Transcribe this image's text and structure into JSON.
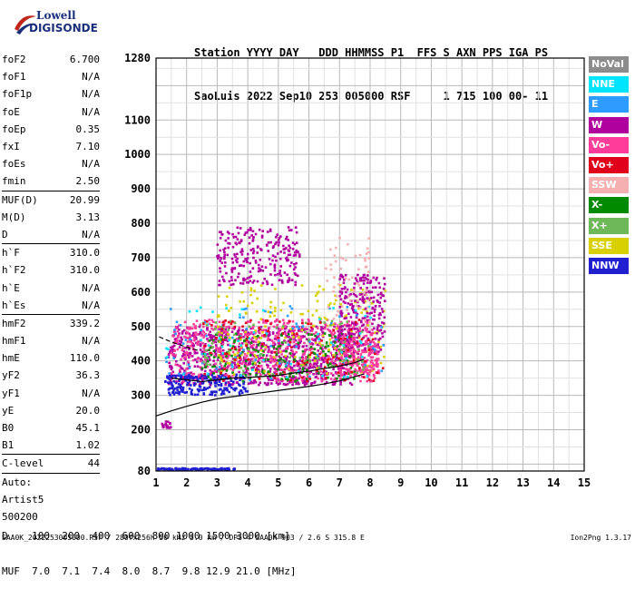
{
  "logo": {
    "line1": "Lowell",
    "line2": "DIGISONDE"
  },
  "header": {
    "row1": "Station YYYY DAY   DDD HHMMSS P1  FFS S AXN PPS IGA PS",
    "row2": "SaoLuis 2022 Sep10 253 005000 RSF     1 715 100 00- 11"
  },
  "params": {
    "group1": [
      {
        "label": "foF2",
        "value": "6.700"
      },
      {
        "label": "foF1",
        "value": "N/A"
      },
      {
        "label": "foF1p",
        "value": "N/A"
      },
      {
        "label": "foE",
        "value": "N/A"
      },
      {
        "label": "foEp",
        "value": "0.35"
      },
      {
        "label": "fxI",
        "value": "7.10"
      },
      {
        "label": "foEs",
        "value": "N/A"
      },
      {
        "label": "fmin",
        "value": "2.50"
      }
    ],
    "group2": [
      {
        "label": "MUF(D)",
        "value": "20.99"
      },
      {
        "label": "M(D)",
        "value": "3.13"
      },
      {
        "label": "D",
        "value": "N/A"
      }
    ],
    "group3": [
      {
        "label": "h`F",
        "value": "310.0"
      },
      {
        "label": "h`F2",
        "value": "310.0"
      },
      {
        "label": "h`E",
        "value": "N/A"
      },
      {
        "label": "h`Es",
        "value": "N/A"
      }
    ],
    "group4": [
      {
        "label": "hmF2",
        "value": "339.2"
      },
      {
        "label": "hmF1",
        "value": "N/A"
      },
      {
        "label": "hmE",
        "value": "110.0"
      },
      {
        "label": "yF2",
        "value": "36.3"
      },
      {
        "label": "yF1",
        "value": "N/A"
      },
      {
        "label": "yE",
        "value": "20.0"
      },
      {
        "label": "B0",
        "value": "45.1"
      },
      {
        "label": "B1",
        "value": "1.02"
      }
    ],
    "group5": [
      {
        "label": "C-level",
        "value": "44"
      }
    ],
    "auto": [
      "Auto:",
      "Artist5",
      "500200"
    ]
  },
  "legend": [
    {
      "label": "NoVal",
      "color": "#8c8c8c"
    },
    {
      "label": "NNE",
      "color": "#00e5ff"
    },
    {
      "label": "E",
      "color": "#2e9bff"
    },
    {
      "label": "W",
      "color": "#b0009e"
    },
    {
      "label": "Vo-",
      "color": "#ff3c9a"
    },
    {
      "label": "Vo+",
      "color": "#e0001c"
    },
    {
      "label": "SSW",
      "color": "#f4b0b0"
    },
    {
      "label": "X-",
      "color": "#008a00"
    },
    {
      "label": "X+",
      "color": "#6fb85a"
    },
    {
      "label": "SSE",
      "color": "#d8d000"
    },
    {
      "label": "NNW",
      "color": "#2020d0"
    }
  ],
  "chart_data": {
    "type": "scatter",
    "title": "",
    "xlabel": "",
    "ylabel": "",
    "xlim": [
      1,
      15
    ],
    "ylim": [
      80,
      1280
    ],
    "xticks": [
      1,
      2,
      3,
      4,
      5,
      6,
      7,
      8,
      9,
      10,
      11,
      12,
      13,
      14,
      15
    ],
    "yticks": [
      80,
      200,
      300,
      400,
      500,
      600,
      700,
      800,
      900,
      1000,
      1100,
      1280
    ],
    "grid": true,
    "trace_line": [
      [
        1,
        240
      ],
      [
        1.5,
        255
      ],
      [
        2,
        268
      ],
      [
        2.5,
        280
      ],
      [
        3,
        290
      ],
      [
        3.5,
        296
      ],
      [
        4,
        302
      ],
      [
        4.5,
        308
      ],
      [
        5,
        314
      ],
      [
        5.5,
        320
      ],
      [
        6,
        326
      ],
      [
        6.5,
        333
      ],
      [
        7,
        342
      ],
      [
        7.5,
        354
      ],
      [
        7.8,
        362
      ]
    ],
    "profile_line": [
      [
        1.5,
        350
      ],
      [
        2,
        345
      ],
      [
        2.5,
        340
      ],
      [
        3,
        345
      ],
      [
        3.5,
        350
      ],
      [
        4,
        352
      ],
      [
        4.5,
        355
      ],
      [
        5,
        358
      ],
      [
        5.5,
        365
      ],
      [
        6,
        370
      ],
      [
        6.5,
        378
      ],
      [
        7,
        385
      ],
      [
        7.5,
        395
      ],
      [
        7.8,
        405
      ]
    ],
    "dashed_line": [
      [
        1.1,
        470
      ],
      [
        1.5,
        455
      ],
      [
        2,
        440
      ],
      [
        2.4,
        430
      ]
    ],
    "clusters": [
      {
        "series": "W",
        "x": [
          1.4,
          7.5
        ],
        "y": [
          330,
          500
        ],
        "n": 900
      },
      {
        "series": "Vo-",
        "x": [
          1.5,
          8.2
        ],
        "y": [
          340,
          520
        ],
        "n": 600
      },
      {
        "series": "NNW",
        "x": [
          1.3,
          4.0
        ],
        "y": [
          300,
          360
        ],
        "n": 200
      },
      {
        "series": "X-",
        "x": [
          2.5,
          7.5
        ],
        "y": [
          340,
          480
        ],
        "n": 200
      },
      {
        "series": "SSE",
        "x": [
          3.0,
          8.5
        ],
        "y": [
          360,
          620
        ],
        "n": 200
      },
      {
        "series": "W",
        "x": [
          3.0,
          5.7
        ],
        "y": [
          620,
          790
        ],
        "n": 250
      },
      {
        "series": "W",
        "x": [
          7.0,
          8.5
        ],
        "y": [
          420,
          650
        ],
        "n": 250
      },
      {
        "series": "Vo-",
        "x": [
          7.0,
          8.3
        ],
        "y": [
          360,
          460
        ],
        "n": 150
      },
      {
        "series": "E",
        "x": [
          1.3,
          8.5
        ],
        "y": [
          340,
          560
        ],
        "n": 80
      },
      {
        "series": "NNE",
        "x": [
          1.3,
          8.5
        ],
        "y": [
          340,
          560
        ],
        "n": 60
      },
      {
        "series": "SSW",
        "x": [
          6.5,
          8.0
        ],
        "y": [
          500,
          760
        ],
        "n": 60
      },
      {
        "series": "X+",
        "x": [
          2.5,
          8.0
        ],
        "y": [
          360,
          520
        ],
        "n": 80
      },
      {
        "series": "Vo+",
        "x": [
          2.5,
          8.5
        ],
        "y": [
          340,
          520
        ],
        "n": 120
      },
      {
        "series": "NNW",
        "x": [
          1.0,
          3.6
        ],
        "y": [
          82,
          88
        ],
        "n": 120
      },
      {
        "series": "W",
        "x": [
          1.2,
          1.6
        ],
        "y": [
          205,
          225
        ],
        "n": 20
      }
    ]
  },
  "footer": {
    "row1_label": "D",
    "row1_values": [
      "100",
      "200",
      "400",
      "600",
      "800",
      "1000",
      "1500",
      "3000"
    ],
    "row1_unit": "[km]",
    "row2_label": "MUF",
    "row2_values": [
      "7.0",
      "7.1",
      "7.4",
      "8.0",
      "8.7",
      "9.8",
      "12.9",
      "21.0"
    ],
    "row2_unit": "[MHz]",
    "file_info": "SAA0K_2022253005000.RSF / 280fx256h 50 kHz 5.0 km / DPS-4 SAA0K 903 / 2.6 S 315.8 E",
    "version": "Ion2Png 1.3.17"
  }
}
